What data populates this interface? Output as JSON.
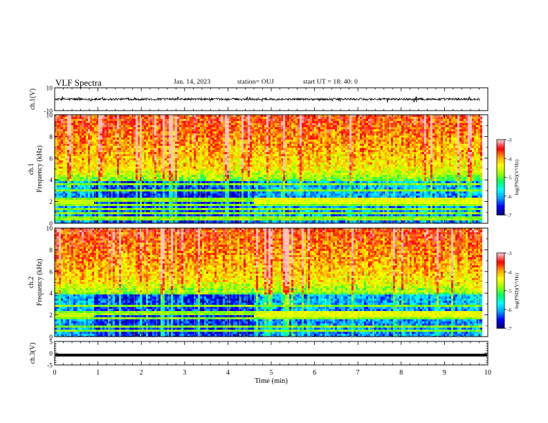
{
  "header": {
    "title": "VLF Spectra",
    "date": "Jan. 14, 2023",
    "station": "station= OUJ",
    "start": "start  UT =   18: 40: 0"
  },
  "colors": {
    "spectrogram_scale": [
      "#000080",
      "#0000ff",
      "#00a0ff",
      "#00ffff",
      "#00ff60",
      "#a0ff00",
      "#ffff00",
      "#ffa000",
      "#ff0000",
      "#ffc0c0"
    ],
    "trace": "#000000"
  },
  "chart_data": [
    {
      "type": "line",
      "name": "ch1-waveform",
      "ylabel": "ch.1(V)",
      "ylim": [
        -10,
        10
      ],
      "yticks": [
        "10",
        "-10"
      ],
      "xlim": [
        0,
        10
      ],
      "description_level": "noisy trace around 0 V with spikes",
      "mean": 0,
      "amplitude": 1.2
    },
    {
      "type": "heatmap",
      "name": "ch1-spectrogram",
      "ylabel": "ch.1\nFrequency (kHz)",
      "ylim": [
        0,
        10
      ],
      "yticks": [
        "0",
        "2",
        "4",
        "6",
        "8",
        "10"
      ],
      "xlim": [
        0,
        10
      ],
      "colorbar": {
        "label": "log(PSD)(V²/Hz)",
        "range": [
          -7,
          -3
        ],
        "ticks": [
          "-3",
          "-4",
          "-5",
          "-6",
          "-7"
        ]
      },
      "transition_min": [
        0.9,
        4.6
      ],
      "band_kHz": [
        0.3,
        0.6,
        1.0,
        1.3,
        1.6,
        2.0,
        2.3,
        3.0,
        3.6,
        4.6
      ]
    },
    {
      "type": "heatmap",
      "name": "ch2-spectrogram",
      "ylabel": "ch.2\nFrequency (kHz)",
      "ylim": [
        0,
        10
      ],
      "yticks": [
        "0",
        "2",
        "4",
        "6",
        "8",
        "10"
      ],
      "xlim": [
        0,
        10
      ],
      "colorbar": {
        "label": "log(PSD)(V²/Hz)",
        "range": [
          -7,
          -3
        ],
        "ticks": [
          "-3",
          "-4",
          "-5",
          "-6",
          "-7"
        ]
      },
      "transition_min": [
        0.9,
        4.6
      ],
      "band_kHz": [
        0.5,
        1.0,
        1.6,
        2.0,
        2.3,
        2.8,
        3.5,
        4.2
      ]
    },
    {
      "type": "line",
      "name": "ch3-waveform",
      "ylabel": "ch.3(V)",
      "ylim": [
        -5,
        5
      ],
      "yticks": [
        "5",
        "0",
        "-5"
      ],
      "xlim": [
        0,
        10
      ],
      "level": -0.8
    }
  ],
  "xaxis": {
    "label": "Time (min)",
    "ticks": [
      "0",
      "1",
      "2",
      "3",
      "4",
      "5",
      "6",
      "7",
      "8",
      "9",
      "10"
    ],
    "range": [
      0,
      10
    ]
  }
}
